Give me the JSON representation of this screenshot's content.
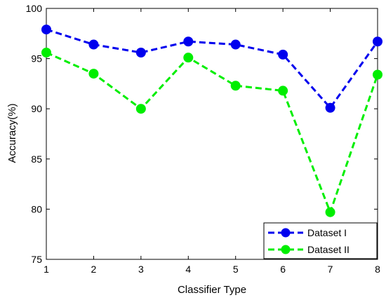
{
  "chart_data": {
    "type": "line",
    "xlabel": "Classifier Type",
    "ylabel": "Accuracy(%)",
    "x": [
      1,
      2,
      3,
      4,
      5,
      6,
      7,
      8
    ],
    "xlim": [
      1,
      8
    ],
    "ylim": [
      75,
      100
    ],
    "x_ticks": [
      "1",
      "2",
      "3",
      "4",
      "5",
      "6",
      "7",
      "8"
    ],
    "y_ticks": [
      "75",
      "80",
      "85",
      "90",
      "95",
      "100"
    ],
    "grid": false,
    "legend_position": "bottom-right",
    "series": [
      {
        "name": "Dataset I",
        "color": "#0000ee",
        "line_style": "dashed",
        "marker": "circle",
        "values": [
          97.9,
          96.4,
          95.6,
          96.7,
          96.4,
          95.4,
          90.1,
          96.7
        ]
      },
      {
        "name": "Dataset II",
        "color": "#00ee00",
        "line_style": "dashed",
        "marker": "circle",
        "values": [
          95.6,
          93.5,
          90.0,
          95.1,
          92.3,
          91.8,
          79.7,
          93.4
        ]
      }
    ]
  }
}
